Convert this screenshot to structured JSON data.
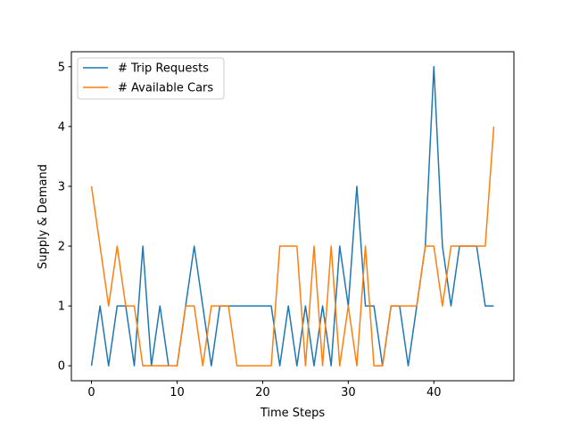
{
  "chart_data": {
    "type": "line",
    "title": "",
    "xlabel": "Time Steps",
    "ylabel": "Supply & Demand",
    "xlim": [
      -2.35,
      49.35
    ],
    "ylim": [
      -0.25,
      5.25
    ],
    "xticks": [
      0,
      10,
      20,
      30,
      40
    ],
    "yticks": [
      0,
      1,
      2,
      3,
      4,
      5
    ],
    "grid": false,
    "legend_position": "upper-left",
    "x": [
      0,
      1,
      2,
      3,
      4,
      5,
      6,
      7,
      8,
      9,
      10,
      11,
      12,
      13,
      14,
      15,
      16,
      17,
      18,
      19,
      20,
      21,
      22,
      23,
      24,
      25,
      26,
      27,
      28,
      29,
      30,
      31,
      32,
      33,
      34,
      35,
      36,
      37,
      38,
      39,
      40,
      41,
      42,
      43,
      44,
      45,
      46,
      47
    ],
    "series": [
      {
        "name": "# Trip Requests",
        "color": "#1f77b4",
        "values": [
          0,
          1,
          0,
          1,
          1,
          0,
          2,
          0,
          1,
          0,
          0,
          1,
          2,
          1,
          0,
          1,
          1,
          1,
          1,
          1,
          1,
          1,
          0,
          1,
          0,
          1,
          0,
          1,
          0,
          2,
          1,
          3,
          1,
          1,
          0,
          1,
          1,
          0,
          1,
          2,
          5,
          2,
          1,
          2,
          2,
          2,
          1,
          1
        ]
      },
      {
        "name": "# Available Cars",
        "color": "#ff7f0e",
        "values": [
          3,
          2,
          1,
          2,
          1,
          1,
          0,
          0,
          0,
          0,
          0,
          1,
          1,
          0,
          1,
          1,
          1,
          0,
          0,
          0,
          0,
          0,
          2,
          2,
          2,
          0,
          2,
          0,
          2,
          0,
          1,
          0,
          2,
          0,
          0,
          1,
          1,
          1,
          1,
          2,
          2,
          1,
          2,
          2,
          2,
          2,
          2,
          4
        ]
      }
    ]
  }
}
